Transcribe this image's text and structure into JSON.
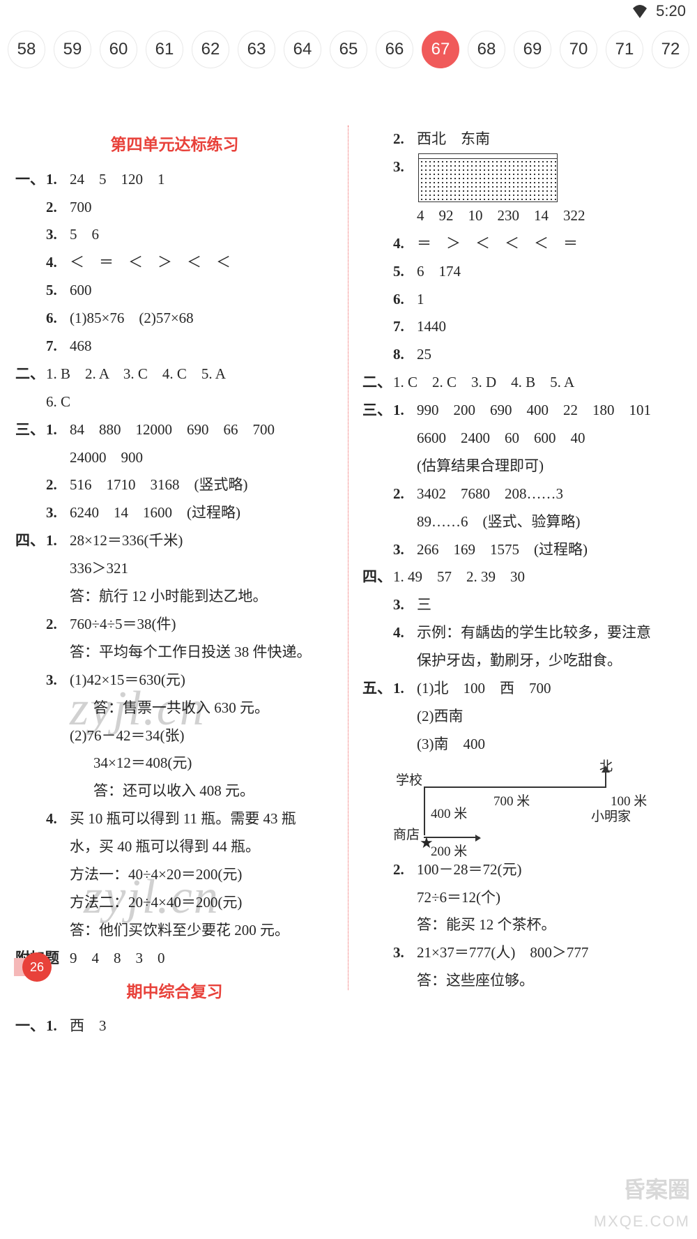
{
  "status": {
    "time": "5:20"
  },
  "pager": {
    "pages": [
      "58",
      "59",
      "60",
      "61",
      "62",
      "63",
      "64",
      "65",
      "66",
      "67",
      "68",
      "69",
      "70",
      "71",
      "72"
    ],
    "active_index": 9
  },
  "colors": {
    "accent": "#e8413a",
    "pill_active": "#f05a5a",
    "text": "#262626"
  },
  "left": {
    "title1": "第四单元达标练习",
    "s1": {
      "label": "一、",
      "i1": {
        "n": "1.",
        "t": "24　5　120　1"
      },
      "i2": {
        "n": "2.",
        "t": "700"
      },
      "i3": {
        "n": "3.",
        "t": "5　6"
      },
      "i4": {
        "n": "4.",
        "t": "＜　＝　＜　＞　＜　＜"
      },
      "i5": {
        "n": "5.",
        "t": "600"
      },
      "i6": {
        "n": "6.",
        "t": "(1)85×76　(2)57×68"
      },
      "i7": {
        "n": "7.",
        "t": "468"
      }
    },
    "s2": {
      "label": "二、",
      "line1": "1. B　2. A　3. C　4. C　5. A",
      "line2": "6. C"
    },
    "s3": {
      "label": "三、",
      "i1a": "84　880　12000　690　66　700",
      "i1b": "24000　900",
      "i2": {
        "n": "2.",
        "t": "516　1710　3168　(竖式略)"
      },
      "i3": {
        "n": "3.",
        "t": "6240　14　1600　(过程略)"
      }
    },
    "s4": {
      "label": "四、",
      "i1a": "28×12＝336(千米)",
      "i1b": "336＞321",
      "i1c": "答：航行 12 小时能到达乙地。",
      "i2a": "760÷4÷5＝38(件)",
      "i2c": "答：平均每个工作日投送 38 件快递。",
      "i3a": "(1)42×15＝630(元)",
      "i3b": "答：售票一共收入 630 元。",
      "i3c": "(2)76－42＝34(张)",
      "i3d": "34×12＝408(元)",
      "i3e": "答：还可以收入 408 元。",
      "i4a": "买 10 瓶可以得到 11 瓶。需要 43 瓶",
      "i4b": "水，买 40 瓶可以得到 44 瓶。",
      "i4c": "方法一：40÷4×20＝200(元)",
      "i4d": "方法二：20÷4×40＝200(元)",
      "i4e": "答：他们买饮料至少要花 200 元。",
      "n1": "1.",
      "n2": "2.",
      "n3": "3.",
      "n4": "4."
    },
    "extra": {
      "label": "附加题",
      "t": "9　4　8　3　0"
    },
    "title2": "期中综合复习",
    "r1": {
      "label": "一、",
      "n": "1.",
      "t": "西　3"
    }
  },
  "right": {
    "i2": {
      "n": "2.",
      "t": "西北　东南"
    },
    "i3n": "3.",
    "i3t": "4　92　10　230　14　322",
    "i4": {
      "n": "4.",
      "t": "＝　＞　＜　＜　＜　＝"
    },
    "i5": {
      "n": "5.",
      "t": "6　174"
    },
    "i6": {
      "n": "6.",
      "t": "1"
    },
    "i7": {
      "n": "7.",
      "t": "1440"
    },
    "i8": {
      "n": "8.",
      "t": "25"
    },
    "s2": {
      "label": "二、",
      "t": "1. C　2. C　3. D　4. B　5. A"
    },
    "s3": {
      "label": "三、",
      "n1": "1.",
      "l1a": "990　200　690　400　22　180　101",
      "l1b": "6600　2400　60　600　40",
      "l1c": "(估算结果合理即可)",
      "n2": "2.",
      "l2a": "3402　7680　208……3",
      "l2b": "89……6　(竖式、验算略)",
      "n3": "3.",
      "l3": "266　169　1575　(过程略)"
    },
    "s4": {
      "label": "四、",
      "l1": "1. 49　57　2. 39　30",
      "n3": "3.",
      "l3": "三",
      "n4": "4.",
      "l4a": "示例：有龋齿的学生比较多，要注意",
      "l4b": "保护牙齿，勤刷牙，少吃甜食。"
    },
    "s5": {
      "label": "五、",
      "n1": "1.",
      "l1a": "(1)北　100　西　700",
      "l1b": "(2)西南",
      "l1c": "(3)南　400",
      "map": {
        "north": "北",
        "school": "学校",
        "d700": "700 米",
        "d100": "100 米",
        "home": "小明家",
        "d400": "400 米",
        "shop": "商店",
        "d200": "200 米"
      },
      "n2": "2.",
      "l2a": "100－28＝72(元)",
      "l2b": "72÷6＝12(个)",
      "l2c": "答：能买 12 个茶杯。",
      "n3": "3.",
      "l3a": "21×37＝777(人)　800＞777",
      "l3b": "答：这些座位够。"
    }
  },
  "page_number": "26",
  "watermark": "zyjl.cn",
  "corner_badge": "昏案圈",
  "corner_url": "MXQE.COM"
}
